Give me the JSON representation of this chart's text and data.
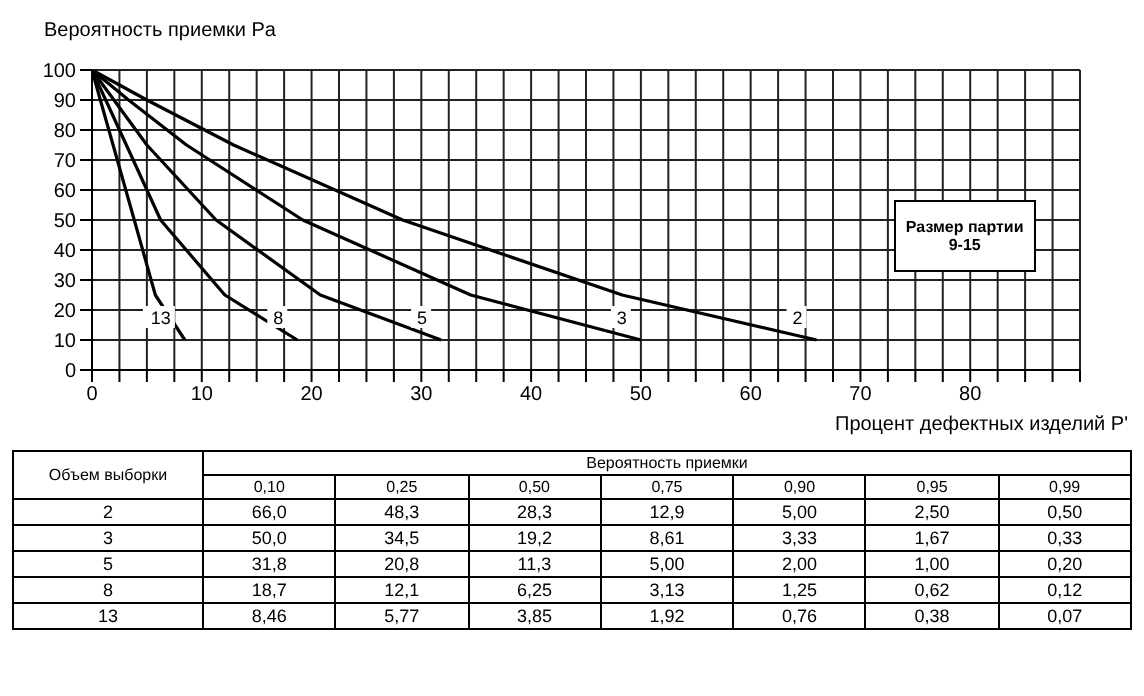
{
  "chart_data": {
    "type": "line",
    "ylabel": "Вероятность приемки Pa",
    "xlabel": "Процент дефектных изделий P'",
    "grid": true,
    "xlim": [
      0,
      90
    ],
    "ylim": [
      0,
      100
    ],
    "xticks": [
      0,
      {
        "value": 2.5,
        "label": null
      },
      {
        "value": 5,
        "label": null
      },
      {
        "value": 7.5,
        "label": null
      },
      10,
      {
        "value": 12.5,
        "label": null
      },
      {
        "value": 15,
        "label": null
      },
      {
        "value": 17.5,
        "label": null
      },
      20,
      {
        "value": 22.5,
        "label": null
      },
      {
        "value": 25,
        "label": null
      },
      {
        "value": 27.5,
        "label": null
      },
      30,
      {
        "value": 32.5,
        "label": null
      },
      {
        "value": 35,
        "label": null
      },
      {
        "value": 37.5,
        "label": null
      },
      40,
      {
        "value": 42.5,
        "label": null
      },
      {
        "value": 45,
        "label": null
      },
      {
        "value": 47.5,
        "label": null
      },
      50,
      {
        "value": 52.5,
        "label": null
      },
      {
        "value": 55,
        "label": null
      },
      {
        "value": 57.5,
        "label": null
      },
      60,
      {
        "value": 62.5,
        "label": null
      },
      {
        "value": 65,
        "label": null
      },
      {
        "value": 67.5,
        "label": null
      },
      70,
      {
        "value": 72.5,
        "label": null
      },
      {
        "value": 75,
        "label": null
      },
      {
        "value": 77.5,
        "label": null
      },
      80,
      {
        "value": 82.5,
        "label": null
      },
      {
        "value": 85,
        "label": null
      },
      {
        "value": 87.5,
        "label": null
      },
      {
        "value": 90,
        "label": null
      }
    ],
    "yticks": [
      0,
      10,
      20,
      30,
      40,
      50,
      60,
      70,
      80,
      90,
      100
    ],
    "series": [
      {
        "name": "2",
        "color": "#000000",
        "x": [
          66.0,
          48.3,
          28.3,
          12.9,
          5.0,
          2.5,
          0.5,
          0
        ],
        "values": [
          10,
          25,
          50,
          75,
          90,
          95,
          99,
          100
        ]
      },
      {
        "name": "3",
        "color": "#000000",
        "x": [
          50.0,
          34.5,
          19.2,
          8.61,
          3.33,
          1.67,
          0.33,
          0
        ],
        "values": [
          10,
          25,
          50,
          75,
          90,
          95,
          99,
          100
        ]
      },
      {
        "name": "5",
        "color": "#000000",
        "x": [
          31.8,
          20.8,
          11.3,
          5.0,
          2.0,
          1.0,
          0.2,
          0
        ],
        "values": [
          10,
          25,
          50,
          75,
          90,
          95,
          99,
          100
        ]
      },
      {
        "name": "8",
        "color": "#000000",
        "x": [
          18.7,
          12.1,
          6.25,
          3.13,
          1.25,
          0.62,
          0.12,
          0
        ],
        "values": [
          10,
          25,
          50,
          75,
          90,
          95,
          99,
          100
        ]
      },
      {
        "name": "13",
        "color": "#000000",
        "x": [
          8.46,
          5.77,
          3.85,
          1.92,
          0.76,
          0.38,
          0.07,
          0
        ],
        "values": [
          10,
          25,
          50,
          75,
          90,
          95,
          99,
          100
        ]
      }
    ],
    "annotations": [
      "Размер партии 9-15",
      "Объем выборки",
      "Вероятность приемки",
      "0,10",
      "0,25",
      "0,50",
      "0,75",
      "0,90",
      "0,95",
      "0,99",
      "66,0",
      "48,3",
      "28,3",
      "12,9",
      "5,00",
      "2,50",
      "0,50",
      "50,0",
      "34,5",
      "19,2",
      "8,61",
      "3,33",
      "1,67",
      "0,33",
      "31,8",
      "20,8",
      "11,3",
      "5,00",
      "2,00",
      "1,00",
      "0,20",
      "18,7",
      "12,1",
      "6,25",
      "3,13",
      "1,25",
      "0,62",
      "0,12",
      "8,46",
      "5,77",
      "3,85",
      "1,92",
      "0,76",
      "0,38",
      "0,07"
    ]
  }
}
